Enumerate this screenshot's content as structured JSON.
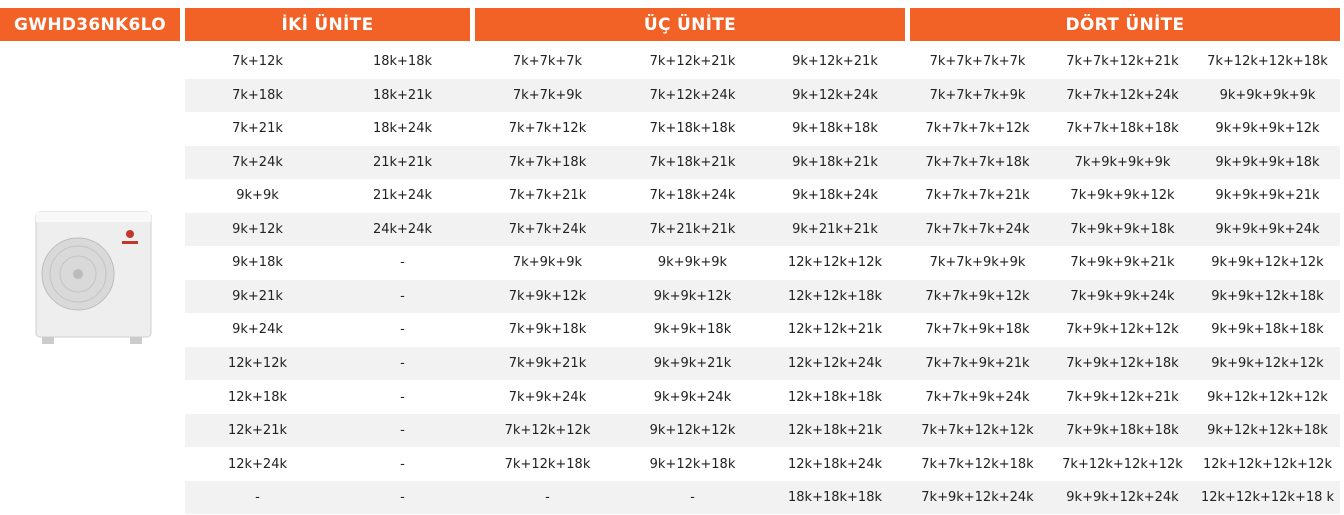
{
  "header": {
    "model": "GWHD36NK6LO",
    "groups": [
      "İKİ ÜNİTE",
      "ÜÇ ÜNİTE",
      "DÖRT ÜNİTE"
    ]
  },
  "table": {
    "rows": [
      [
        "7k+12k",
        "18k+18k",
        "7k+7k+7k",
        "7k+12k+21k",
        "9k+12k+21k",
        "7k+7k+7k+7k",
        "7k+7k+12k+21k",
        "7k+12k+12k+18k"
      ],
      [
        "7k+18k",
        "18k+21k",
        "7k+7k+9k",
        "7k+12k+24k",
        "9k+12k+24k",
        "7k+7k+7k+9k",
        "7k+7k+12k+24k",
        "9k+9k+9k+9k"
      ],
      [
        "7k+21k",
        "18k+24k",
        "7k+7k+12k",
        "7k+18k+18k",
        "9k+18k+18k",
        "7k+7k+7k+12k",
        "7k+7k+18k+18k",
        "9k+9k+9k+12k"
      ],
      [
        "7k+24k",
        "21k+21k",
        "7k+7k+18k",
        "7k+18k+21k",
        "9k+18k+21k",
        "7k+7k+7k+18k",
        "7k+9k+9k+9k",
        "9k+9k+9k+18k"
      ],
      [
        "9k+9k",
        "21k+24k",
        "7k+7k+21k",
        "7k+18k+24k",
        "9k+18k+24k",
        "7k+7k+7k+21k",
        "7k+9k+9k+12k",
        "9k+9k+9k+21k"
      ],
      [
        "9k+12k",
        "24k+24k",
        "7k+7k+24k",
        "7k+21k+21k",
        "9k+21k+21k",
        "7k+7k+7k+24k",
        "7k+9k+9k+18k",
        "9k+9k+9k+24k"
      ],
      [
        "9k+18k",
        "-",
        "7k+9k+9k",
        "9k+9k+9k",
        "12k+12k+12k",
        "7k+7k+9k+9k",
        "7k+9k+9k+21k",
        "9k+9k+12k+12k"
      ],
      [
        "9k+21k",
        "-",
        "7k+9k+12k",
        "9k+9k+12k",
        "12k+12k+18k",
        "7k+7k+9k+12k",
        "7k+9k+9k+24k",
        "9k+9k+12k+18k"
      ],
      [
        "9k+24k",
        "-",
        "7k+9k+18k",
        "9k+9k+18k",
        "12k+12k+21k",
        "7k+7k+9k+18k",
        "7k+9k+12k+12k",
        "9k+9k+18k+18k"
      ],
      [
        "12k+12k",
        "-",
        "7k+9k+21k",
        "9k+9k+21k",
        "12k+12k+24k",
        "7k+7k+9k+21k",
        "7k+9k+12k+18k",
        "9k+9k+12k+12k"
      ],
      [
        "12k+18k",
        "-",
        "7k+9k+24k",
        "9k+9k+24k",
        "12k+18k+18k",
        "7k+7k+9k+24k",
        "7k+9k+12k+21k",
        "9k+12k+12k+12k"
      ],
      [
        "12k+21k",
        "-",
        "7k+12k+12k",
        "9k+12k+12k",
        "12k+18k+21k",
        "7k+7k+12k+12k",
        "7k+9k+18k+18k",
        "9k+12k+12k+18k"
      ],
      [
        "12k+24k",
        "-",
        "7k+12k+18k",
        "9k+12k+18k",
        "12k+18k+24k",
        "7k+7k+12k+18k",
        "7k+12k+12k+12k",
        "12k+12k+12k+12k"
      ],
      [
        "-",
        "-",
        "-",
        "-",
        "18k+18k+18k",
        "7k+9k+12k+24k",
        "9k+9k+12k+24k",
        "12k+12k+12k+18 k"
      ]
    ]
  }
}
